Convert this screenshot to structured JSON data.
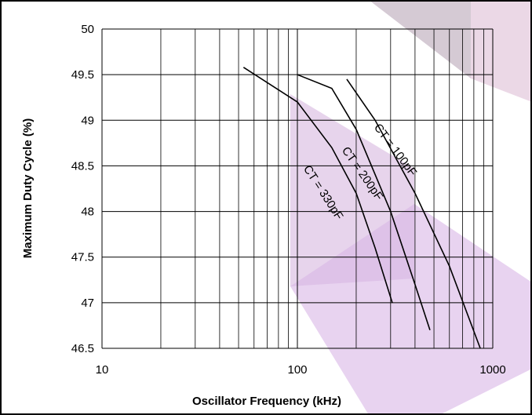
{
  "chart_data": {
    "type": "line",
    "x_label": "Oscillator  Frequency  (kHz)",
    "y_label": "Maximum Duty Cycle  (%)",
    "x_scale": "log",
    "grid": true,
    "minor_grid": true,
    "xlim": [
      10,
      1000
    ],
    "xticks": [
      10,
      100,
      1000
    ],
    "ylim": [
      46.5,
      50
    ],
    "yticks": [
      46.5,
      47,
      47.5,
      48,
      48.5,
      49,
      49.5,
      50
    ],
    "series": [
      {
        "name": "CT = 330pF",
        "color": "#000000",
        "x": [
          53,
          100,
          150,
          200,
          250,
          306
        ],
        "values": [
          49.58,
          49.2,
          48.7,
          48.2,
          47.6,
          47.0
        ]
      },
      {
        "name": "CT = 200pF",
        "color": "#000000",
        "x": [
          100,
          150,
          200,
          300,
          400,
          477
        ],
        "values": [
          49.5,
          49.35,
          48.9,
          48.0,
          47.2,
          46.7
        ]
      },
      {
        "name": "CT = 100pF",
        "color": "#000000",
        "x": [
          179,
          250,
          400,
          600,
          863
        ],
        "values": [
          49.45,
          49.0,
          48.2,
          47.4,
          46.5
        ]
      }
    ]
  }
}
